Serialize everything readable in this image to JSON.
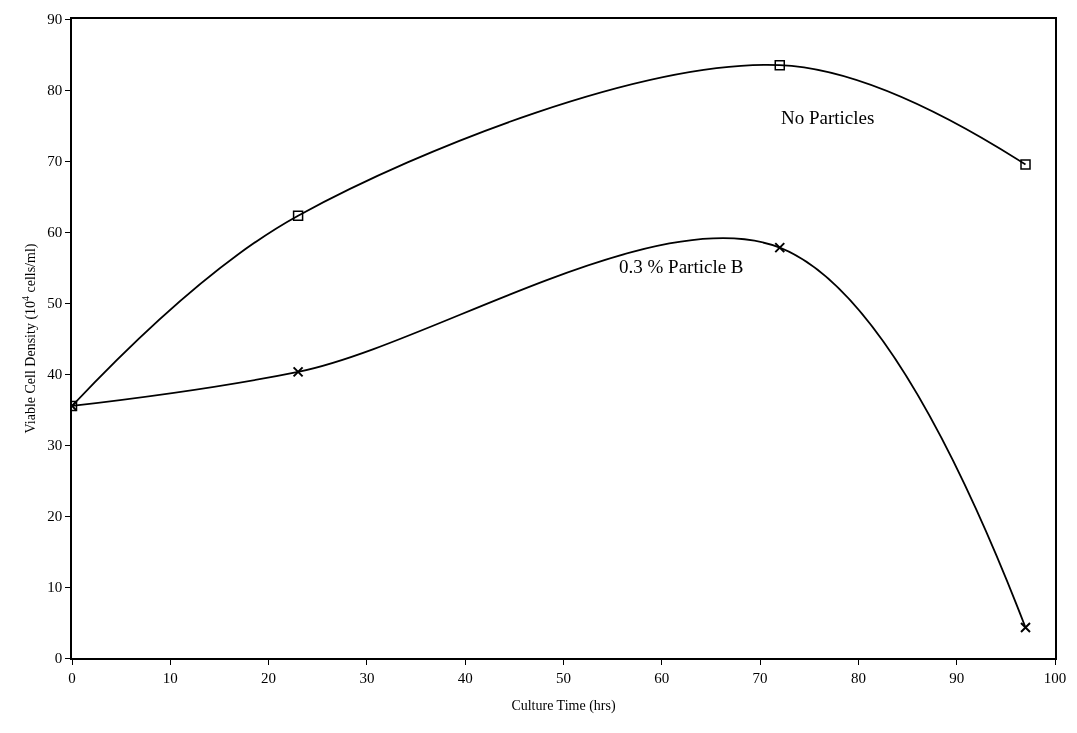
{
  "chart_data": {
    "type": "line",
    "xlabel": "Culture Time (hrs)",
    "ylabel": "Viable Cell Density (10$^{4}$ cells/ml)",
    "x": [
      0,
      23,
      72,
      97
    ],
    "series": [
      {
        "name": "No Particles",
        "color": "#000000",
        "marker": "square",
        "values": [
          35.5,
          62.3,
          83.5,
          69.5
        ]
      },
      {
        "name": "0.3 % Particle B",
        "color": "#000000",
        "marker": "cross",
        "values": [
          35.5,
          40.3,
          57.8,
          4.3
        ]
      }
    ],
    "xlim": [
      0,
      100
    ],
    "xticks": [
      0,
      10,
      20,
      30,
      40,
      50,
      60,
      70,
      80,
      90,
      100
    ],
    "ylim": [
      0,
      90
    ],
    "yticks": [
      0,
      10,
      20,
      30,
      40,
      50,
      60,
      70,
      80,
      90
    ],
    "legend": false,
    "line_style": "solid"
  }
}
